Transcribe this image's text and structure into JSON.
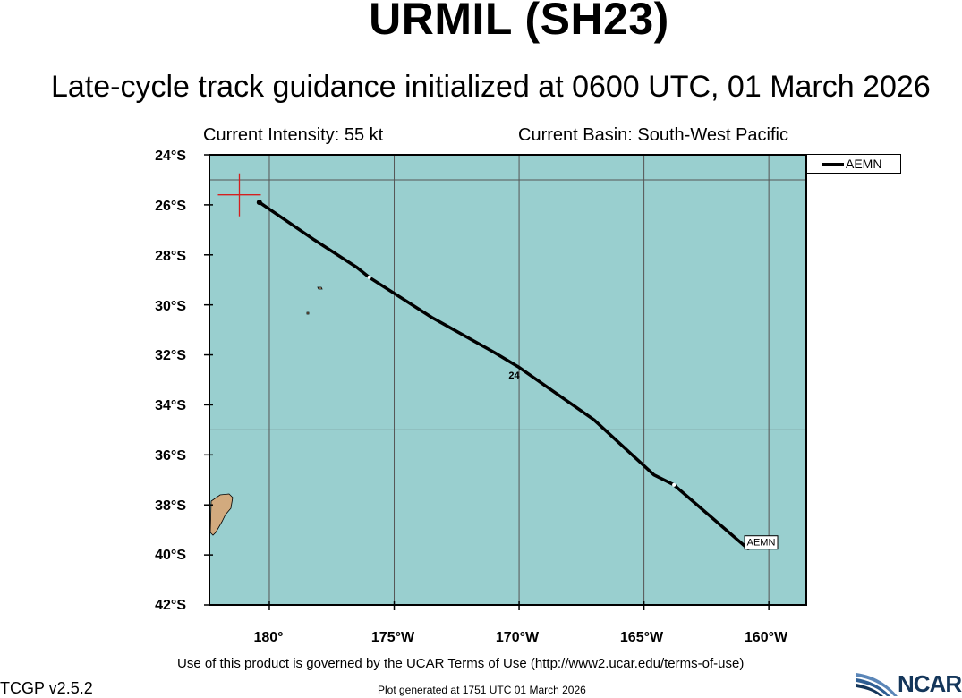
{
  "header": {
    "title": "URMIL (SH23)",
    "subtitle": "Late-cycle track guidance initialized at 0600 UTC, 01 March 2026",
    "intensity": "Current Intensity: 55 kt",
    "basin": "Current Basin: South-West Pacific"
  },
  "axes": {
    "y_labels": [
      "24°S",
      "26°S",
      "28°S",
      "30°S",
      "32°S",
      "34°S",
      "36°S",
      "38°S",
      "40°S",
      "42°S"
    ],
    "x_labels": [
      "180°",
      "175°W",
      "170°W",
      "165°W",
      "160°W"
    ],
    "lon_range_east": [
      177.6,
      201.5
    ],
    "lat_range": [
      -24,
      -42
    ],
    "grid": true
  },
  "legend": {
    "entries": [
      "AEMN"
    ]
  },
  "current_position": {
    "lon_east": 178.8,
    "lat": -25.6
  },
  "track": {
    "name": "AEMN",
    "label": "AEMN",
    "points": [
      [
        179.6,
        -25.9
      ],
      [
        181.8,
        -27.4
      ],
      [
        183.5,
        -28.5
      ],
      [
        184.0,
        -28.9
      ],
      [
        186.5,
        -30.5
      ],
      [
        189.0,
        -31.9
      ],
      [
        190.0,
        -32.5
      ],
      [
        193.0,
        -34.6
      ],
      [
        195.4,
        -36.8
      ],
      [
        196.2,
        -37.2
      ],
      [
        199.1,
        -39.7
      ]
    ],
    "tick_points": [
      [
        184.0,
        -28.9
      ],
      [
        196.2,
        -37.2
      ]
    ],
    "hour_label": {
      "text": "24",
      "lon_east": 189.8,
      "lat": -32.8
    }
  },
  "footer": {
    "terms": "Use of this product is governed by the UCAR Terms of Use (http://www2.ucar.edu/terms-of-use)",
    "version": "TCGP v2.5.2",
    "generated": "Plot generated at 1751 UTC   01 March 2026",
    "logo_text": "NCAR"
  },
  "colors": {
    "ocean": "#99cfcf",
    "land": "#d2aa7e",
    "track": "#000000",
    "current_marker": "#d42020",
    "grid": "#555555",
    "logo": "#14365a"
  }
}
